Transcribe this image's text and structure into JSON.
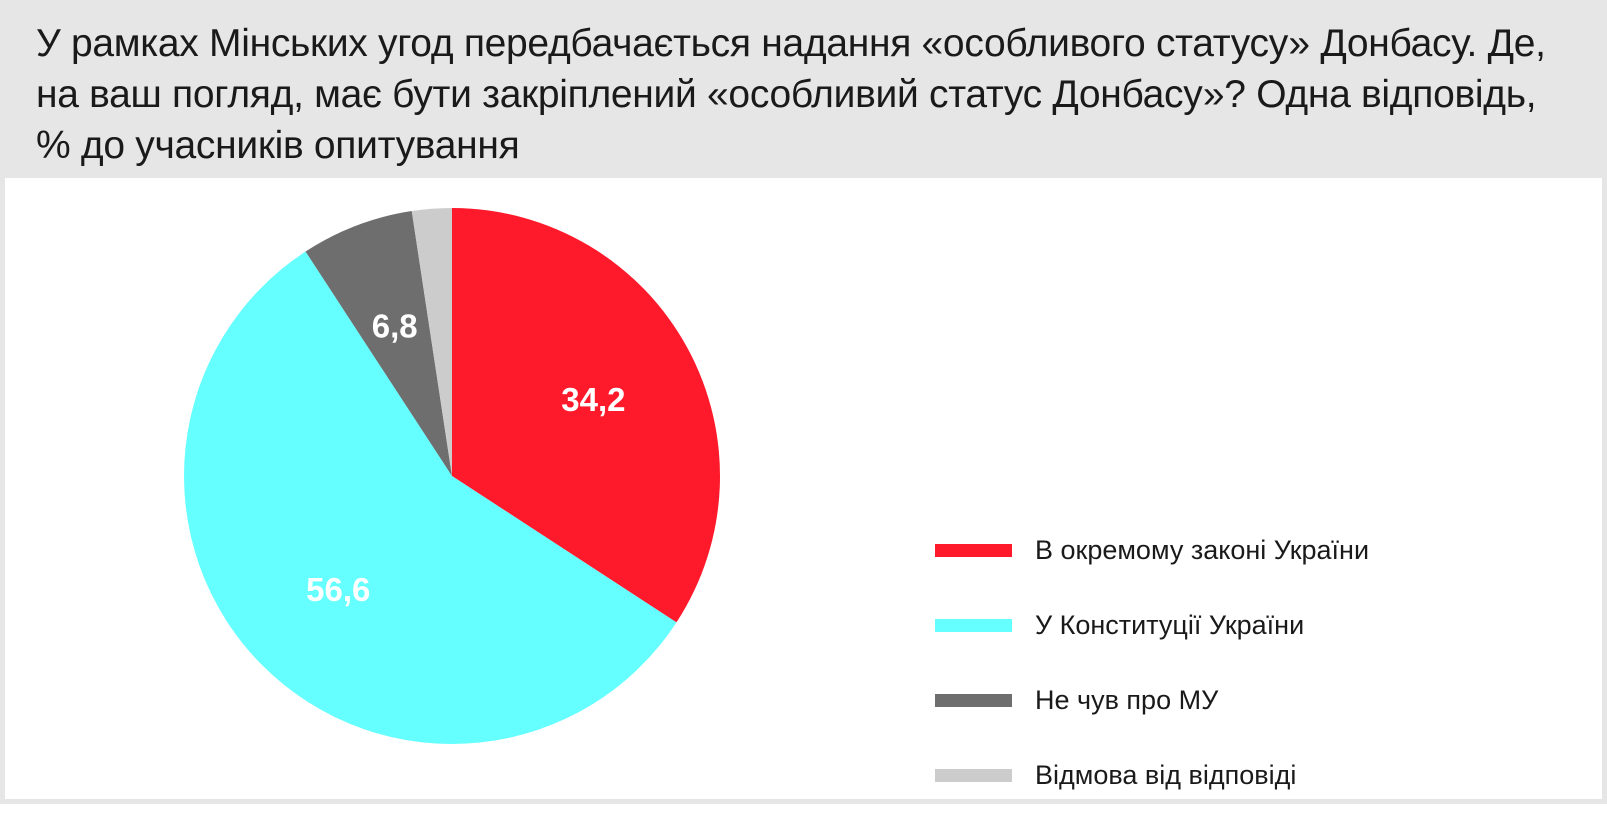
{
  "title": "У рамках Мінських угод передбачається надання «особливого статусу» Донбасу. Де, на ваш погляд, має бути закріплений «особливий статус Донбасу»? Одна відповідь, % до учасників опитування",
  "chart_data": {
    "type": "pie",
    "title": "У рамках Мінських угод передбачається надання «особливого статусу» Донбасу. Де, на ваш погляд, має бути закріплений «особливий статус Донбасу»? Одна відповідь, % до учасників опитування",
    "start_angle_deg": 0,
    "direction": "clockwise",
    "legend_position": "right",
    "slices": [
      {
        "name": "В окремому законі України",
        "value": 34.2,
        "label": "34,2",
        "color": "#ff1a2b"
      },
      {
        "name": "У Конституції України",
        "value": 56.6,
        "label": "56,6",
        "color": "#66ffff"
      },
      {
        "name": "Не чув про МУ",
        "value": 6.8,
        "label": "6,8",
        "color": "#6e6e6e"
      },
      {
        "name": "Відмова від відповіді",
        "value": 2.4,
        "label": "",
        "color": "#cccccc"
      }
    ]
  }
}
